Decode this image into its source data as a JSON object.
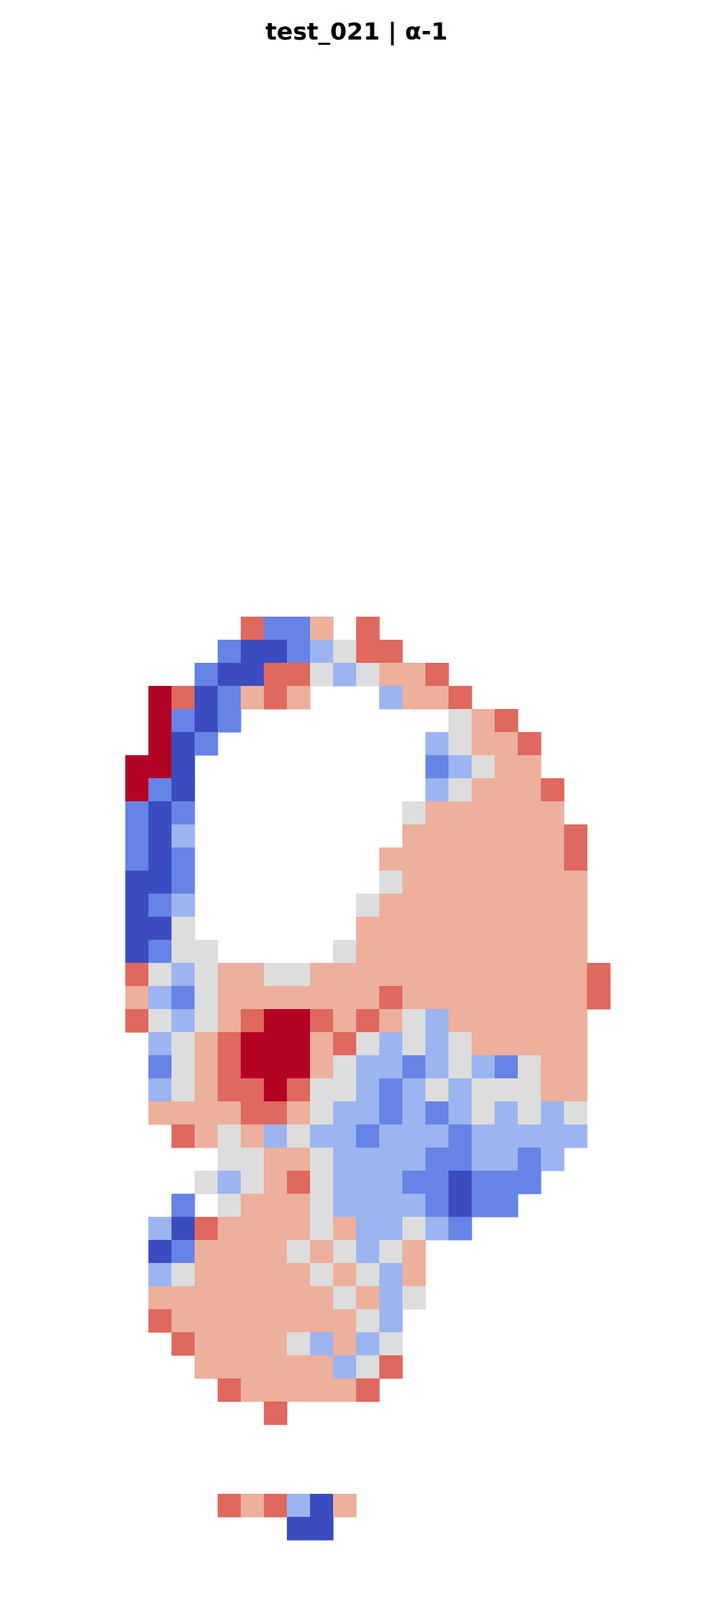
{
  "chart_data": {
    "type": "heatmap",
    "title": "test_021 | α-1",
    "color": "coolwarm",
    "tick_labels": false,
    "color_range": [
      -3,
      3
    ],
    "cells": [
      [
        null,
        null,
        null,
        null,
        null,
        2,
        -2,
        -2,
        1,
        null,
        2,
        null,
        null,
        null,
        null,
        null,
        null,
        null,
        null,
        null,
        null,
        null
      ],
      [
        null,
        null,
        null,
        null,
        -2,
        -3,
        -3,
        -2,
        -1,
        0,
        2,
        2,
        null,
        null,
        null,
        null,
        null,
        null,
        null,
        null,
        null,
        null
      ],
      [
        null,
        null,
        null,
        -2,
        -3,
        -3,
        2,
        2,
        0,
        -1,
        0,
        1,
        1,
        2,
        null,
        null,
        null,
        null,
        null,
        null,
        null,
        null
      ],
      [
        null,
        3,
        2,
        -3,
        -2,
        1,
        2,
        1,
        null,
        null,
        null,
        -1,
        1,
        1,
        2,
        null,
        null,
        null,
        null,
        null,
        null,
        null
      ],
      [
        null,
        3,
        -2,
        -3,
        -2,
        null,
        null,
        null,
        null,
        null,
        null,
        null,
        null,
        null,
        0,
        1,
        2,
        null,
        null,
        null,
        null,
        null
      ],
      [
        null,
        3,
        -3,
        -2,
        null,
        null,
        null,
        null,
        null,
        null,
        null,
        null,
        null,
        -1,
        0,
        1,
        1,
        2,
        null,
        null,
        null,
        null
      ],
      [
        3,
        3,
        -3,
        null,
        null,
        null,
        null,
        null,
        null,
        null,
        null,
        null,
        null,
        -2,
        -1,
        0,
        1,
        1,
        null,
        null,
        null,
        null
      ],
      [
        3,
        -2,
        -3,
        null,
        null,
        null,
        null,
        null,
        null,
        null,
        null,
        null,
        null,
        -1,
        0,
        1,
        1,
        1,
        2,
        null,
        null,
        null
      ],
      [
        -2,
        -3,
        -2,
        null,
        null,
        null,
        null,
        null,
        null,
        null,
        null,
        null,
        0,
        1,
        1,
        1,
        1,
        1,
        1,
        null,
        null,
        null
      ],
      [
        -2,
        -3,
        -1,
        null,
        null,
        null,
        null,
        null,
        null,
        null,
        null,
        null,
        1,
        1,
        1,
        1,
        1,
        1,
        1,
        2,
        null,
        null
      ],
      [
        -2,
        -3,
        -2,
        null,
        null,
        null,
        null,
        null,
        null,
        null,
        null,
        1,
        1,
        1,
        1,
        1,
        1,
        1,
        1,
        2,
        null,
        null
      ],
      [
        -3,
        -3,
        -2,
        null,
        null,
        null,
        null,
        null,
        null,
        null,
        null,
        0,
        1,
        1,
        1,
        1,
        1,
        1,
        1,
        1,
        null,
        null
      ],
      [
        -3,
        -2,
        -1,
        null,
        null,
        null,
        null,
        null,
        null,
        null,
        0,
        1,
        1,
        1,
        1,
        1,
        1,
        1,
        1,
        1,
        null,
        null
      ],
      [
        -3,
        -3,
        0,
        null,
        null,
        null,
        null,
        null,
        null,
        null,
        1,
        1,
        1,
        1,
        1,
        1,
        1,
        1,
        1,
        1,
        null,
        null
      ],
      [
        -3,
        -2,
        0,
        0,
        null,
        null,
        null,
        null,
        null,
        0,
        1,
        1,
        1,
        1,
        1,
        1,
        1,
        1,
        1,
        1,
        null,
        null
      ],
      [
        2,
        0,
        -1,
        0,
        1,
        1,
        0,
        0,
        1,
        1,
        1,
        1,
        1,
        1,
        1,
        1,
        1,
        1,
        1,
        1,
        2,
        null
      ],
      [
        1,
        -1,
        -2,
        0,
        1,
        1,
        1,
        1,
        1,
        1,
        1,
        2,
        1,
        1,
        1,
        1,
        1,
        1,
        1,
        1,
        2,
        null
      ],
      [
        2,
        0,
        -1,
        0,
        1,
        2,
        3,
        3,
        2,
        1,
        2,
        1,
        0,
        -1,
        1,
        1,
        1,
        1,
        1,
        1,
        null,
        null
      ],
      [
        null,
        -1,
        0,
        1,
        2,
        3,
        3,
        3,
        1,
        2,
        0,
        -1,
        0,
        -1,
        0,
        1,
        1,
        1,
        1,
        1,
        null,
        null
      ],
      [
        null,
        -2,
        0,
        1,
        2,
        3,
        3,
        3,
        1,
        0,
        -1,
        -1,
        -2,
        -1,
        0,
        -1,
        -2,
        0,
        1,
        1,
        null,
        null
      ],
      [
        null,
        -1,
        0,
        1,
        2,
        2,
        3,
        2,
        0,
        0,
        -1,
        -2,
        -1,
        0,
        -1,
        0,
        0,
        0,
        1,
        1,
        null,
        null
      ],
      [
        null,
        1,
        1,
        1,
        1,
        2,
        2,
        1,
        0,
        -1,
        -1,
        -2,
        -1,
        -2,
        -1,
        0,
        -1,
        0,
        -1,
        0,
        null,
        null
      ],
      [
        null,
        null,
        2,
        1,
        0,
        1,
        -1,
        0,
        -1,
        -1,
        -2,
        -1,
        -1,
        -1,
        -2,
        -1,
        -1,
        -1,
        -1,
        -1,
        null,
        null
      ],
      [
        null,
        null,
        null,
        null,
        0,
        0,
        1,
        1,
        0,
        -1,
        -1,
        -1,
        -1,
        -2,
        -2,
        -1,
        -1,
        -2,
        -1,
        null,
        null,
        null
      ],
      [
        null,
        null,
        null,
        0,
        -1,
        0,
        1,
        2,
        0,
        -1,
        -1,
        -1,
        -2,
        -2,
        -3,
        -2,
        -2,
        -2,
        null,
        null,
        null,
        null
      ],
      [
        null,
        null,
        -2,
        null,
        0,
        1,
        1,
        1,
        0,
        -1,
        -1,
        -1,
        -1,
        -2,
        -3,
        -2,
        -2,
        null,
        null,
        null,
        null,
        null
      ],
      [
        null,
        -1,
        -3,
        2,
        1,
        1,
        1,
        1,
        0,
        1,
        -1,
        -1,
        0,
        -1,
        -2,
        null,
        null,
        null,
        null,
        null,
        null,
        null
      ],
      [
        null,
        -3,
        -2,
        1,
        1,
        1,
        1,
        0,
        1,
        0,
        -1,
        0,
        1,
        null,
        null,
        null,
        null,
        null,
        null,
        null,
        null,
        null
      ],
      [
        null,
        -1,
        0,
        1,
        1,
        1,
        1,
        1,
        0,
        1,
        0,
        -1,
        1,
        null,
        null,
        null,
        null,
        null,
        null,
        null,
        null,
        null
      ],
      [
        null,
        1,
        1,
        1,
        1,
        1,
        1,
        1,
        1,
        0,
        1,
        -1,
        0,
        null,
        null,
        null,
        null,
        null,
        null,
        null,
        null,
        null
      ],
      [
        null,
        2,
        1,
        1,
        1,
        1,
        1,
        1,
        1,
        1,
        0,
        -1,
        null,
        null,
        null,
        null,
        null,
        null,
        null,
        null,
        null,
        null
      ],
      [
        null,
        null,
        2,
        1,
        1,
        1,
        1,
        0,
        -1,
        1,
        -1,
        0,
        null,
        null,
        null,
        null,
        null,
        null,
        null,
        null,
        null,
        null
      ],
      [
        null,
        null,
        null,
        1,
        1,
        1,
        1,
        1,
        1,
        -1,
        0,
        2,
        null,
        null,
        null,
        null,
        null,
        null,
        null,
        null,
        null,
        null
      ],
      [
        null,
        null,
        null,
        null,
        2,
        1,
        1,
        1,
        1,
        1,
        2,
        null,
        null,
        null,
        null,
        null,
        null,
        null,
        null,
        null,
        null,
        null
      ],
      [
        null,
        null,
        null,
        null,
        null,
        null,
        2,
        null,
        null,
        null,
        null,
        null,
        null,
        null,
        null,
        null,
        null,
        null,
        null,
        null,
        null,
        null
      ],
      [
        null,
        null,
        null,
        null,
        null,
        null,
        null,
        null,
        null,
        null,
        null,
        null,
        null,
        null,
        null,
        null,
        null,
        null,
        null,
        null,
        null,
        null
      ],
      [
        null,
        null,
        null,
        null,
        null,
        null,
        null,
        null,
        null,
        null,
        null,
        null,
        null,
        null,
        null,
        null,
        null,
        null,
        null,
        null,
        null,
        null
      ],
      [
        null,
        null,
        null,
        null,
        null,
        null,
        null,
        null,
        null,
        null,
        null,
        null,
        null,
        null,
        null,
        null,
        null,
        null,
        null,
        null,
        null,
        null
      ],
      [
        null,
        null,
        null,
        null,
        2,
        1,
        2,
        -1,
        -3,
        1,
        null,
        null,
        null,
        null,
        null,
        null,
        null,
        null,
        null,
        null,
        null,
        null
      ],
      [
        null,
        null,
        null,
        null,
        null,
        null,
        null,
        -3,
        -3,
        null,
        null,
        null,
        null,
        null,
        null,
        null,
        null,
        null,
        null,
        null,
        null,
        null
      ]
    ]
  }
}
